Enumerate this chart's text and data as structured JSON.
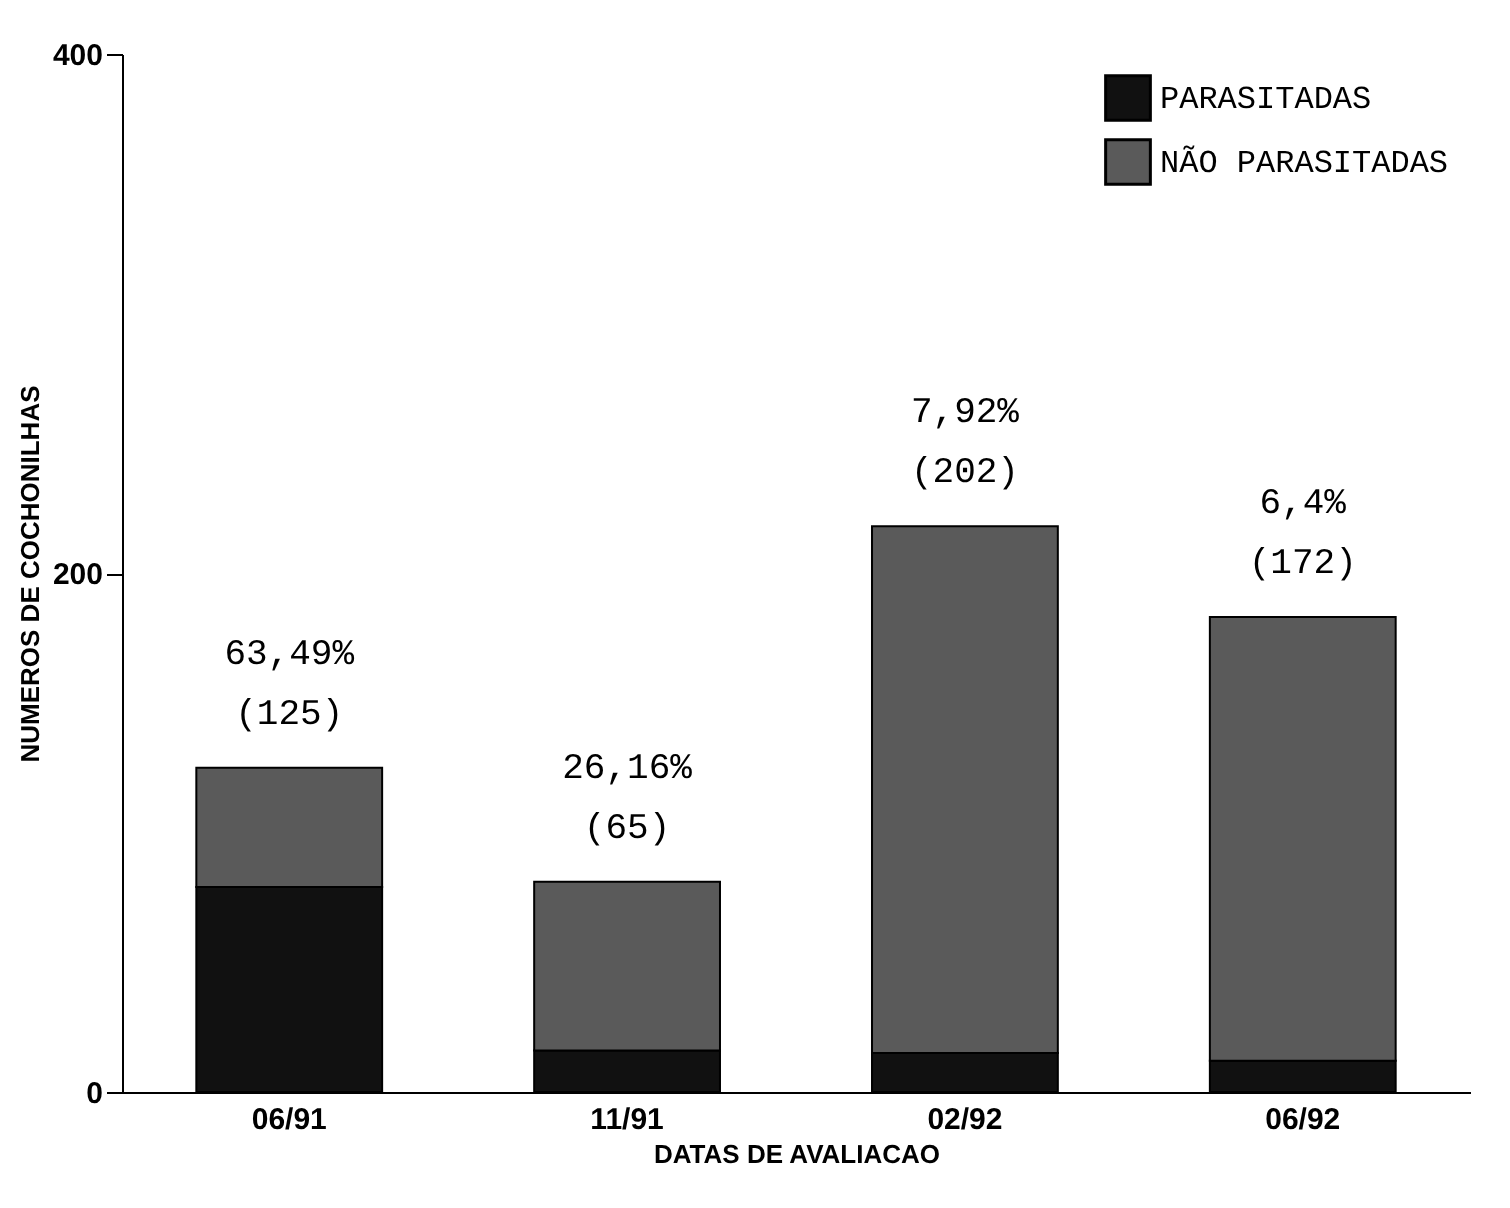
{
  "chart_data": {
    "type": "bar",
    "stacked": true,
    "xlabel": "DATAS DE AVALIACAO",
    "ylabel": "NUMEROS DE COCHONILHAS",
    "categories": [
      "06/91",
      "11/91",
      "02/92",
      "06/92"
    ],
    "series": [
      {
        "name": "PARASITADAS",
        "color": "#111111",
        "values": [
          79,
          16,
          15,
          12
        ]
      },
      {
        "name": "NÃO PARASITADAS",
        "color": "#5a5a5a",
        "values": [
          46,
          65,
          203,
          171
        ]
      }
    ],
    "ylim": [
      0,
      400
    ],
    "yticks": [
      0,
      200,
      400
    ],
    "grid": false,
    "legend": "top right",
    "annotations": [
      "63,49%\n(125)",
      "26,16%\n(65)",
      "7,92%\n(202)",
      "6,4%\n(172)"
    ]
  }
}
